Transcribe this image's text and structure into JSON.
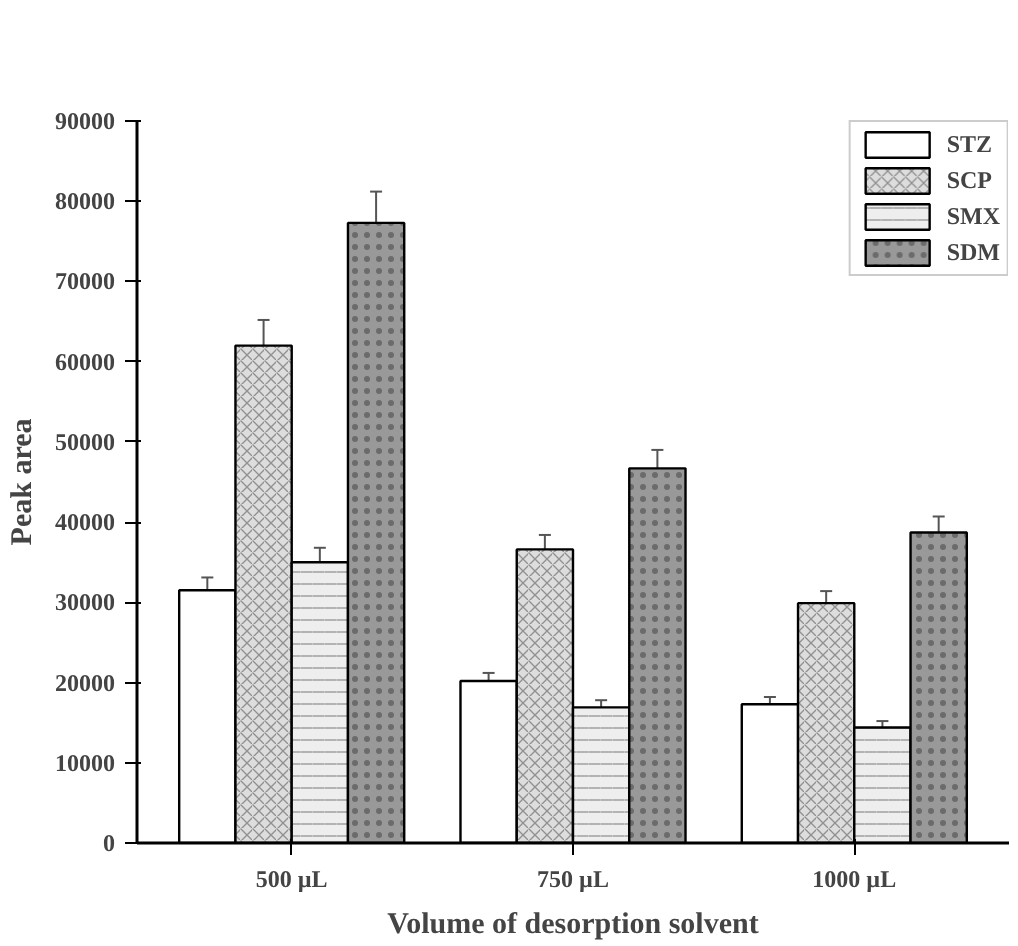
{
  "chart_data": {
    "type": "bar",
    "xlabel": "Volume of desorption solvent",
    "ylabel": "Peak area",
    "categories": [
      "500 µL",
      "750 µL",
      "1000 µL"
    ],
    "series": [
      {
        "name": "STZ",
        "color": "#ffffff",
        "values": [
          31500,
          20200,
          17300
        ],
        "errors": [
          1600,
          1000,
          900
        ]
      },
      {
        "name": "SCP",
        "color": "#dddddd",
        "values": [
          62000,
          36600,
          29900
        ],
        "errors": [
          3200,
          1800,
          1500
        ]
      },
      {
        "name": "SMX",
        "color": "#eeeeee",
        "values": [
          35000,
          16900,
          14400
        ],
        "errors": [
          1800,
          900,
          800
        ]
      },
      {
        "name": "SDM",
        "color": "#999999",
        "values": [
          77300,
          46700,
          38700
        ],
        "errors": [
          3900,
          2300,
          2000
        ]
      }
    ],
    "ylim": [
      0,
      90000
    ],
    "yticks": [
      0,
      10000,
      20000,
      30000,
      40000,
      50000,
      60000,
      70000,
      80000,
      90000
    ],
    "grid": false,
    "legend": "top right"
  }
}
